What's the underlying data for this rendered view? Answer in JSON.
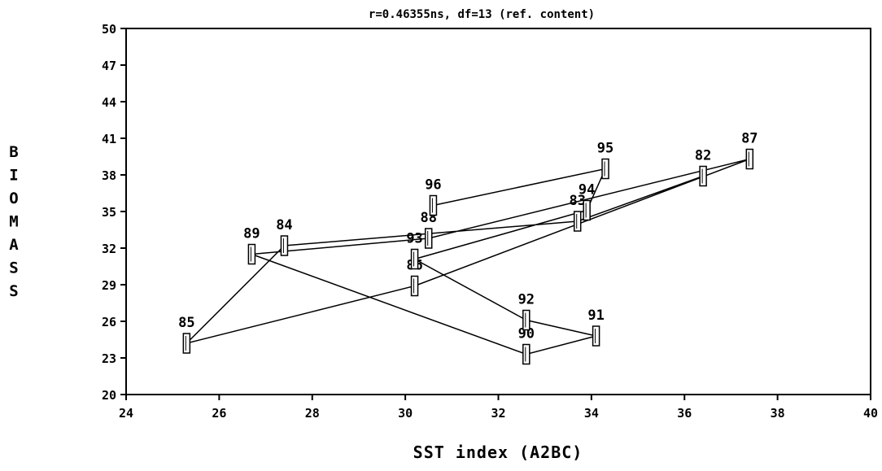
{
  "chart_data": {
    "type": "scatter",
    "title": "r=0.46355ns,  df=13 (ref. content)",
    "xlabel": "SST index (A2BC)",
    "ylabel": "BIOMASS",
    "xlim": [
      24,
      40
    ],
    "ylim": [
      20,
      50
    ],
    "xticks": [
      "24",
      "26",
      "28",
      "30",
      "32",
      "34",
      "36",
      "38",
      "40"
    ],
    "yticks": [
      "20",
      "23",
      "26",
      "29",
      "32",
      "35",
      "38",
      "41",
      "44",
      "47",
      "50"
    ],
    "grid": false,
    "connected_in_year_order": true,
    "points": [
      {
        "label": "82",
        "x": 36.4,
        "y": 37.9
      },
      {
        "label": "83",
        "x": 33.7,
        "y": 34.2
      },
      {
        "label": "84",
        "x": 27.4,
        "y": 32.2
      },
      {
        "label": "85",
        "x": 25.3,
        "y": 24.2
      },
      {
        "label": "86",
        "x": 30.2,
        "y": 28.9
      },
      {
        "label": "87",
        "x": 37.4,
        "y": 39.3
      },
      {
        "label": "88",
        "x": 30.5,
        "y": 32.8
      },
      {
        "label": "89",
        "x": 26.7,
        "y": 31.5
      },
      {
        "label": "90",
        "x": 32.6,
        "y": 23.3
      },
      {
        "label": "91",
        "x": 34.1,
        "y": 24.8
      },
      {
        "label": "92",
        "x": 32.6,
        "y": 26.1
      },
      {
        "label": "93",
        "x": 30.2,
        "y": 31.1
      },
      {
        "label": "94",
        "x": 33.9,
        "y": 35.1
      },
      {
        "label": "95",
        "x": 34.3,
        "y": 38.5
      },
      {
        "label": "96",
        "x": 30.6,
        "y": 35.5
      }
    ]
  }
}
